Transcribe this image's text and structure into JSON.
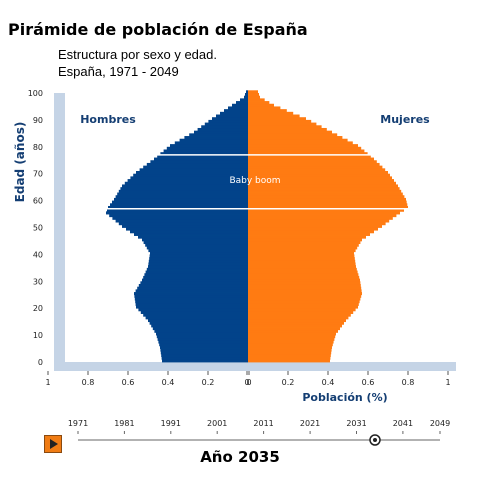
{
  "title": "Pirámide de población de España",
  "subtitle_line1": "Estructura por sexo y edad.",
  "subtitle_line2": "España, 1971 - 2049",
  "year_caption": "Año 2035",
  "slider": {
    "years": [
      "1971",
      "1981",
      "1991",
      "2001",
      "2011",
      "2021",
      "2031",
      "2041",
      "2049"
    ],
    "year_min": 1971,
    "year_max": 2049,
    "current_year": 2035,
    "play_icon": "play-icon"
  },
  "chart_data": {
    "type": "population-pyramid",
    "title": "Pirámide de población de España",
    "xlabel": "Población (%)",
    "ylabel": "Edad (años)",
    "left_label": "Hombres",
    "right_label": "Mujeres",
    "annotation": "Baby boom",
    "annotation_age": 72,
    "reference_lines_age": [
      57,
      77
    ],
    "x_ticks": [
      "1",
      "0.8",
      "0.6",
      "0.4",
      "0.2",
      "0",
      "0",
      "0.2",
      "0.4",
      "0.6",
      "0.8",
      "1"
    ],
    "y_ticks": [
      "0",
      "10",
      "20",
      "30",
      "40",
      "50",
      "60",
      "70",
      "80",
      "90",
      "100"
    ],
    "xlim": [
      -1,
      1
    ],
    "ylim": [
      0,
      100
    ],
    "colors": {
      "men": "#02438a",
      "women": "#ff7b12",
      "axis_band": "#c5d4e6",
      "label": "#143e73"
    },
    "series": [
      {
        "name": "Hombres",
        "ages": [
          0,
          5,
          10,
          15,
          20,
          25,
          30,
          35,
          40,
          45,
          50,
          55,
          57,
          60,
          65,
          70,
          75,
          80,
          85,
          90,
          95,
          98,
          100
        ],
        "values": [
          0.43,
          0.44,
          0.46,
          0.5,
          0.56,
          0.57,
          0.53,
          0.5,
          0.49,
          0.53,
          0.63,
          0.71,
          0.7,
          0.67,
          0.63,
          0.56,
          0.47,
          0.39,
          0.27,
          0.18,
          0.08,
          0.02,
          0.01
        ]
      },
      {
        "name": "Mujeres",
        "ages": [
          0,
          5,
          10,
          15,
          20,
          25,
          30,
          35,
          40,
          45,
          50,
          55,
          57,
          60,
          65,
          70,
          75,
          80,
          85,
          90,
          95,
          98,
          100
        ],
        "values": [
          0.41,
          0.42,
          0.44,
          0.49,
          0.55,
          0.57,
          0.56,
          0.54,
          0.53,
          0.57,
          0.67,
          0.76,
          0.8,
          0.79,
          0.75,
          0.7,
          0.63,
          0.55,
          0.42,
          0.29,
          0.13,
          0.06,
          0.05
        ]
      }
    ]
  }
}
